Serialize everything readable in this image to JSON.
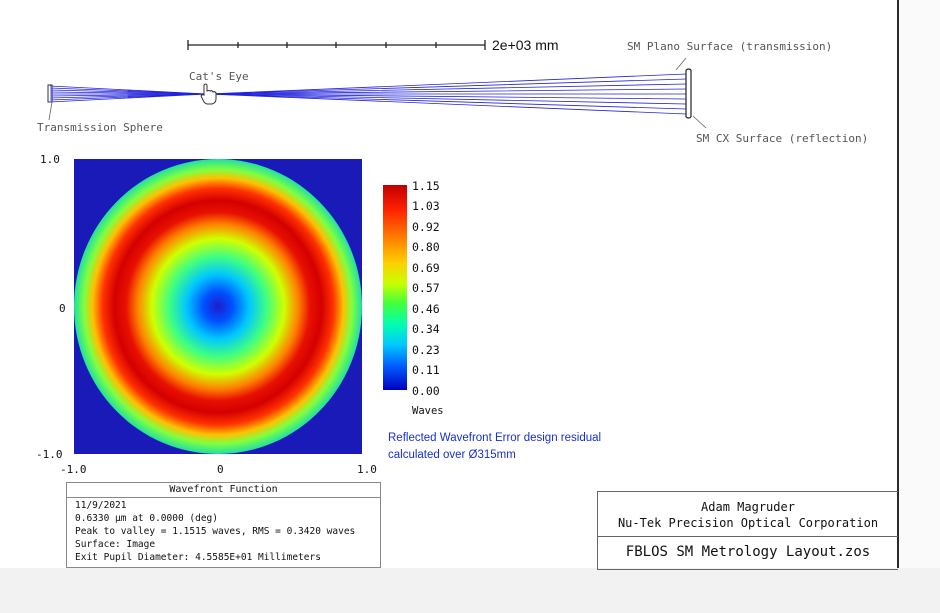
{
  "layout_view": {
    "scale_bar_label": "2e+03 mm",
    "labels": {
      "cats_eye": "Cat's Eye",
      "transmission_sphere": "Transmission Sphere",
      "sm_plano": "SM Plano Surface (transmission)",
      "sm_cx": "SM CX Surface (reflection)"
    }
  },
  "wavefront_map": {
    "y_ticks": [
      "1.0",
      "0",
      "-1.0"
    ],
    "x_ticks": [
      "-1.0",
      "0",
      "1.0"
    ],
    "colors": {
      "background": "#1a1ab8",
      "center": "#2020c8",
      "peak": "#d40000"
    }
  },
  "colorbar": {
    "values": [
      "1.15",
      "1.03",
      "0.92",
      "0.80",
      "0.69",
      "0.57",
      "0.46",
      "0.34",
      "0.23",
      "0.11",
      "0.00"
    ],
    "unit_label": "Waves"
  },
  "caption": {
    "line1": "Reflected Wavefront Error design residual",
    "line2": "calculated over Ø315mm"
  },
  "info_box": {
    "title": "Wavefront Function",
    "lines": [
      "11/9/2021",
      "0.6330 µm at 0.0000 (deg)",
      "Peak to valley = 1.1515 waves, RMS = 0.3420 waves",
      "Surface: Image",
      "Exit Pupil Diameter: 4.5585E+01 Millimeters"
    ]
  },
  "title_block": {
    "author": "Adam Magruder",
    "company": "Nu-Tek Precision Optical Corporation",
    "filename": "FBLOS SM Metrology Layout.zos"
  }
}
